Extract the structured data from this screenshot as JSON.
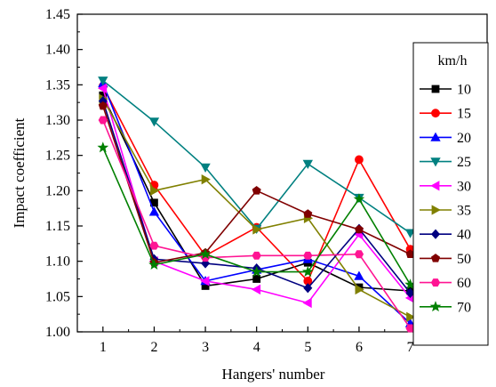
{
  "chart_data": {
    "type": "line",
    "xlabel": "Hangers' number",
    "ylabel": "Impact coefficient",
    "x": [
      1,
      2,
      3,
      4,
      5,
      6,
      7
    ],
    "xlim": [
      0.5,
      8.5
    ],
    "ylim": [
      1.0,
      1.45
    ],
    "x_ticks": [
      "1",
      "2",
      "3",
      "4",
      "5",
      "6",
      "7"
    ],
    "y_ticks": [
      "1.00",
      "1.05",
      "1.10",
      "1.15",
      "1.20",
      "1.25",
      "1.30",
      "1.35",
      "1.40",
      "1.45"
    ],
    "grid": false,
    "legend_title": "km/h",
    "legend_position": "right",
    "series": [
      {
        "name": "10",
        "color": "#000000",
        "marker": "square",
        "values": [
          1.335,
          1.183,
          1.065,
          1.075,
          1.098,
          1.063,
          1.058
        ]
      },
      {
        "name": "15",
        "color": "#ff0000",
        "marker": "circle",
        "values": [
          1.348,
          1.208,
          1.108,
          1.148,
          1.072,
          1.244,
          1.117
        ]
      },
      {
        "name": "20",
        "color": "#0000ff",
        "marker": "triangle-up",
        "values": [
          1.352,
          1.17,
          1.072,
          1.088,
          1.103,
          1.079,
          1.012
        ]
      },
      {
        "name": "25",
        "color": "#008080",
        "marker": "triangle-down",
        "values": [
          1.356,
          1.298,
          1.233,
          1.146,
          1.238,
          1.19,
          1.14
        ]
      },
      {
        "name": "30",
        "color": "#ff00ff",
        "marker": "triangle-left",
        "values": [
          1.345,
          1.1,
          1.072,
          1.06,
          1.041,
          1.138,
          1.048
        ]
      },
      {
        "name": "35",
        "color": "#808000",
        "marker": "triangle-right",
        "values": [
          1.33,
          1.2,
          1.216,
          1.145,
          1.161,
          1.06,
          1.021
        ]
      },
      {
        "name": "40",
        "color": "#000080",
        "marker": "diamond",
        "values": [
          1.327,
          1.103,
          1.097,
          1.09,
          1.062,
          1.146,
          1.055
        ]
      },
      {
        "name": "50",
        "color": "#800000",
        "marker": "pentagon",
        "values": [
          1.32,
          1.098,
          1.112,
          1.2,
          1.167,
          1.145,
          1.11
        ]
      },
      {
        "name": "60",
        "color": "#ff1493",
        "marker": "hexagon",
        "values": [
          1.3,
          1.122,
          1.105,
          1.108,
          1.108,
          1.11,
          1.005
        ]
      },
      {
        "name": "70",
        "color": "#008000",
        "marker": "star",
        "values": [
          1.261,
          1.095,
          1.11,
          1.085,
          1.085,
          1.188,
          1.067
        ]
      }
    ]
  }
}
